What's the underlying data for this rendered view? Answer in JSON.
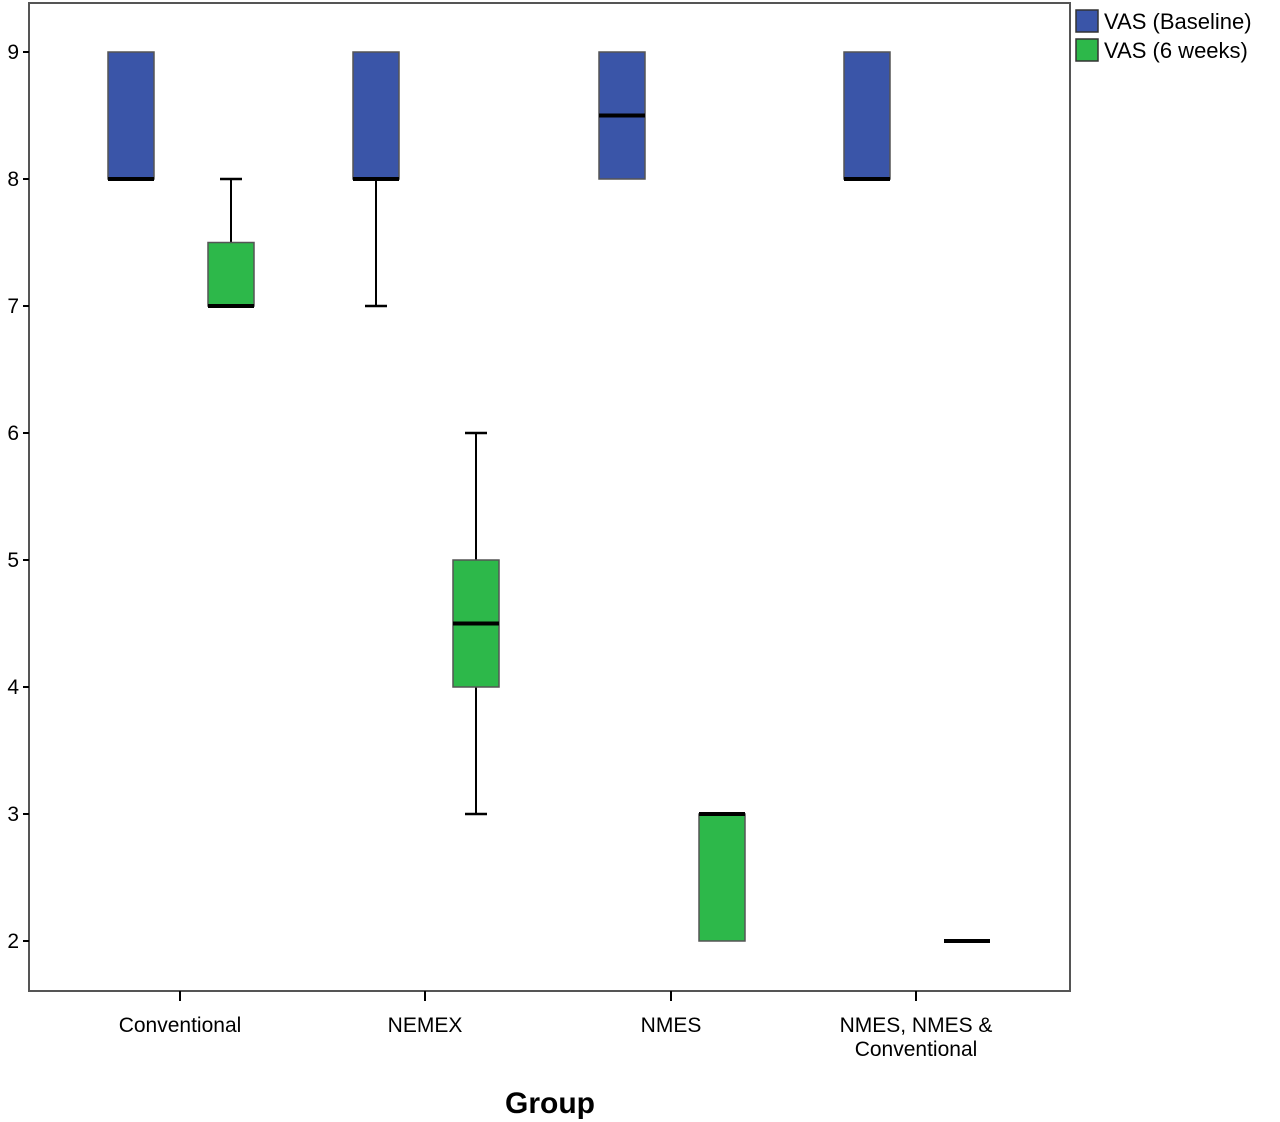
{
  "chart_data": {
    "type": "boxplot",
    "title": "",
    "xlabel": "Group",
    "ylabel": "",
    "ylim": [
      1.6,
      9.4
    ],
    "yticks": [
      "2",
      "3",
      "4",
      "5",
      "6",
      "7",
      "8",
      "9"
    ],
    "grid": false,
    "legend_position": "top-right (outside plot)",
    "categories": [
      {
        "label": "Conventional"
      },
      {
        "label": "NEMEX"
      },
      {
        "label": "NMES"
      },
      {
        "label": "NMES, NMES &",
        "label_line2": "Conventional"
      }
    ],
    "series": [
      {
        "name": "VAS (Baseline)",
        "color": "#3a55a8",
        "boxes": [
          {
            "min": 8,
            "q1": 8,
            "median": 8,
            "q3": 9,
            "max": 9
          },
          {
            "min": 7,
            "q1": 8,
            "median": 8,
            "q3": 9,
            "max": 9
          },
          {
            "min": 8,
            "q1": 8,
            "median": 8.5,
            "q3": 9,
            "max": 9
          },
          {
            "min": 8,
            "q1": 8,
            "median": 8,
            "q3": 9,
            "max": 9
          }
        ]
      },
      {
        "name": "VAS (6 weeks)",
        "color": "#2db84a",
        "boxes": [
          {
            "min": 7,
            "q1": 7,
            "median": 7,
            "q3": 7.5,
            "max": 8
          },
          {
            "min": 3,
            "q1": 4,
            "median": 4.5,
            "q3": 5,
            "max": 6
          },
          {
            "min": 2,
            "q1": 2,
            "median": 3,
            "q3": 3,
            "max": 3
          },
          {
            "min": 2,
            "q1": 2,
            "median": 2,
            "q3": 2,
            "max": 2
          }
        ]
      }
    ]
  }
}
